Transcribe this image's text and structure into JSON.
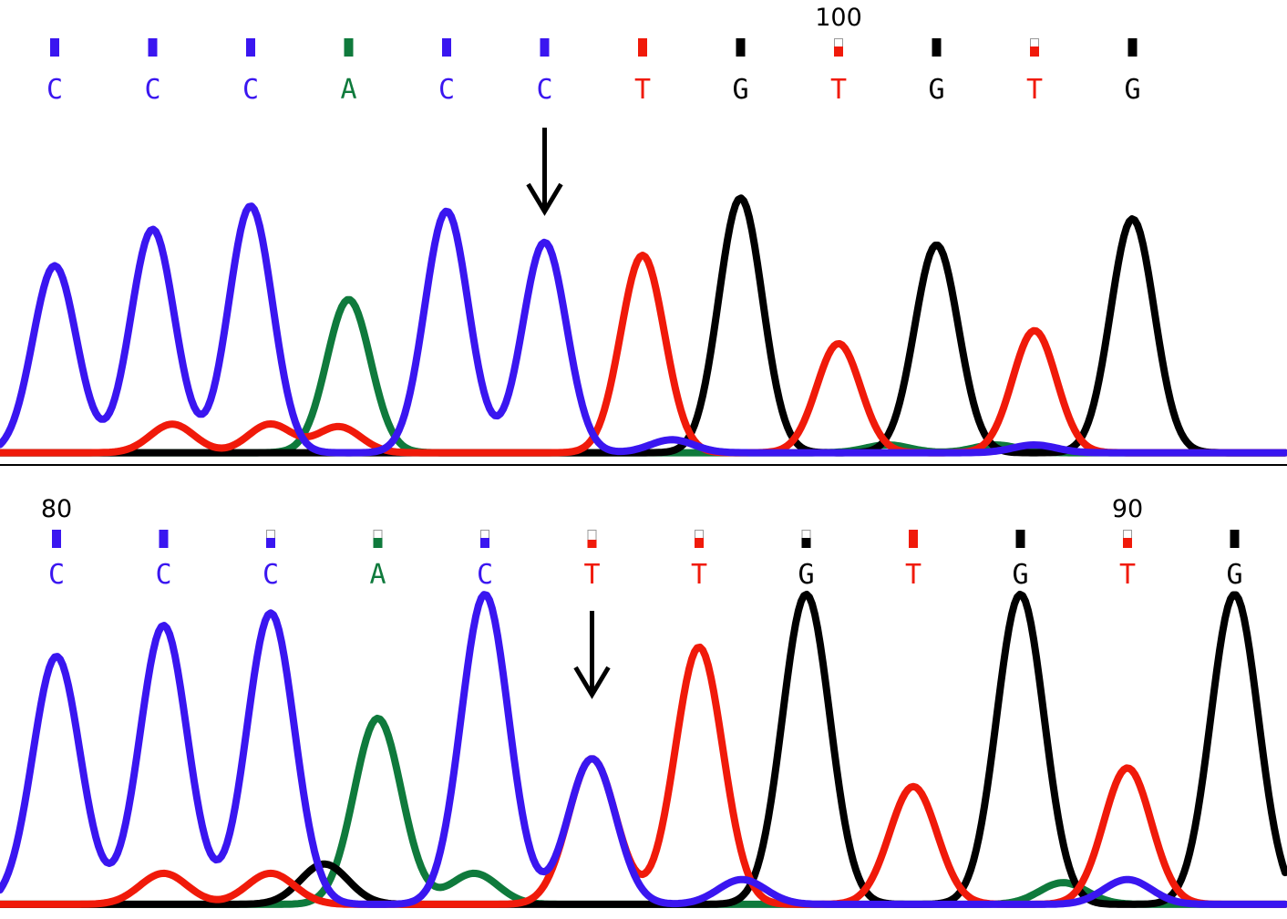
{
  "colors": {
    "C": "#3a16f0",
    "A": "#0f7a3c",
    "T": "#f01a0a",
    "G": "#000000"
  },
  "chart_data": [
    {
      "type": "line",
      "panel": "top",
      "position_label": "100",
      "position_label_base_index": 8,
      "bases": [
        "C",
        "C",
        "C",
        "A",
        "C",
        "C",
        "T",
        "G",
        "T",
        "G",
        "T",
        "G"
      ],
      "quality": [
        1,
        1,
        1,
        1,
        1,
        1,
        1,
        1,
        0.55,
        1,
        0.55,
        1
      ],
      "arrow_base_index": 5,
      "series": [
        {
          "base": "C",
          "peaks": [
            {
              "center": 0,
              "height": 0.72
            },
            {
              "center": 1,
              "height": 0.86
            },
            {
              "center": 2,
              "height": 0.95
            },
            {
              "center": 4,
              "height": 0.93
            },
            {
              "center": 5,
              "height": 0.81
            },
            {
              "center": 6.3,
              "height": 0.05
            },
            {
              "center": 10,
              "height": 0.03
            }
          ]
        },
        {
          "base": "A",
          "peaks": [
            {
              "center": 3,
              "height": 0.59
            },
            {
              "center": 8.5,
              "height": 0.03
            },
            {
              "center": 9.6,
              "height": 0.03
            }
          ]
        },
        {
          "base": "T",
          "peaks": [
            {
              "center": 6,
              "height": 0.76
            },
            {
              "center": 8,
              "height": 0.42
            },
            {
              "center": 10,
              "height": 0.47
            },
            {
              "center": 1.2,
              "height": 0.11
            },
            {
              "center": 2.2,
              "height": 0.11
            },
            {
              "center": 2.9,
              "height": 0.1
            }
          ]
        },
        {
          "base": "G",
          "peaks": [
            {
              "center": 7,
              "height": 0.98
            },
            {
              "center": 9,
              "height": 0.8
            },
            {
              "center": 11,
              "height": 0.9
            }
          ]
        }
      ]
    },
    {
      "type": "line",
      "panel": "bottom",
      "position_label": "80",
      "position_label_base_index": 0,
      "position_label_2": "90",
      "position_label_2_base_index": 10,
      "bases": [
        "C",
        "C",
        "C",
        "A",
        "C",
        "T",
        "T",
        "G",
        "T",
        "G",
        "T",
        "G"
      ],
      "quality": [
        1,
        1,
        0.55,
        0.55,
        0.55,
        0.45,
        0.55,
        0.55,
        1,
        1,
        0.55,
        1
      ],
      "arrow_base_index": 5,
      "series": [
        {
          "base": "C",
          "peaks": [
            {
              "center": 0,
              "height": 0.8
            },
            {
              "center": 1,
              "height": 0.9
            },
            {
              "center": 2,
              "height": 0.94
            },
            {
              "center": 4,
              "height": 1.0
            },
            {
              "center": 5,
              "height": 0.47
            },
            {
              "center": 6.4,
              "height": 0.08
            },
            {
              "center": 10,
              "height": 0.08
            }
          ]
        },
        {
          "base": "A",
          "peaks": [
            {
              "center": 3,
              "height": 0.6
            },
            {
              "center": 3.9,
              "height": 0.1
            },
            {
              "center": 9.4,
              "height": 0.07
            }
          ]
        },
        {
          "base": "T",
          "peaks": [
            {
              "center": 5,
              "height": 0.47
            },
            {
              "center": 6,
              "height": 0.83
            },
            {
              "center": 8,
              "height": 0.38
            },
            {
              "center": 10,
              "height": 0.44
            },
            {
              "center": 1,
              "height": 0.1
            },
            {
              "center": 2,
              "height": 0.1
            }
          ]
        },
        {
          "base": "G",
          "peaks": [
            {
              "center": 7,
              "height": 1.0
            },
            {
              "center": 9,
              "height": 1.0
            },
            {
              "center": 11,
              "height": 1.0
            },
            {
              "center": 2.5,
              "height": 0.13
            }
          ]
        }
      ]
    }
  ]
}
